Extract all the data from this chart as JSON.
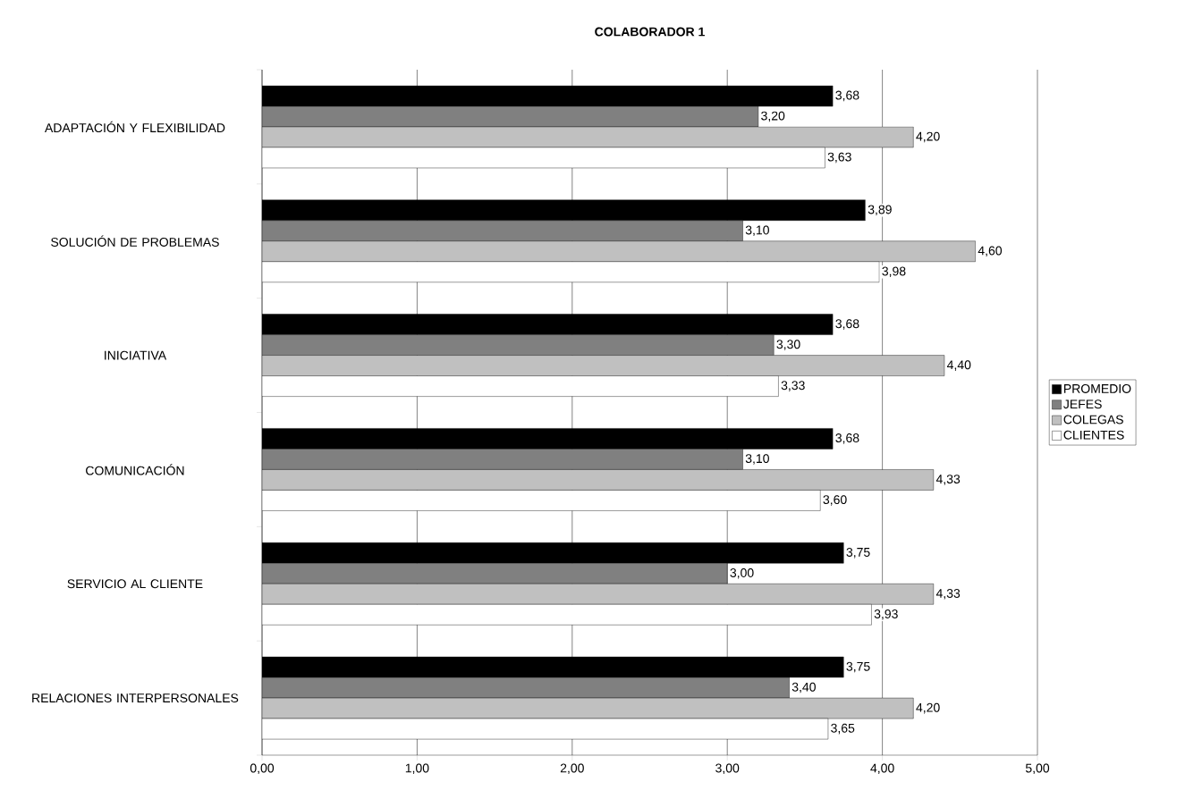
{
  "chart_data": {
    "type": "bar",
    "orientation": "horizontal",
    "title": "COLABORADOR 1",
    "categories": [
      "ADAPTACIÓN Y FLEXIBILIDAD",
      "SOLUCIÓN DE PROBLEMAS",
      "INICIATIVA",
      "COMUNICACIÓN",
      "SERVICIO AL CLIENTE",
      "RELACIONES INTERPERSONALES"
    ],
    "series": [
      {
        "name": "PROMEDIO",
        "color": "#000000",
        "values": [
          3.68,
          3.89,
          3.68,
          3.68,
          3.75,
          3.75
        ],
        "value_labels": [
          "3,68",
          "3,89",
          "3,68",
          "3,68",
          "3,75",
          "3,75"
        ]
      },
      {
        "name": "JEFES",
        "color": "#808080",
        "values": [
          3.2,
          3.1,
          3.3,
          3.1,
          3.0,
          3.4
        ],
        "value_labels": [
          "3,20",
          "3,10",
          "3,30",
          "3,10",
          "3,00",
          "3,40"
        ]
      },
      {
        "name": "COLEGAS",
        "color": "#c0c0c0",
        "values": [
          4.2,
          4.6,
          4.4,
          4.33,
          4.33,
          4.2
        ],
        "value_labels": [
          "4,20",
          "4,60",
          "4,40",
          "4,33",
          "4,33",
          "4,20"
        ]
      },
      {
        "name": "CLIENTES",
        "color": "#ffffff",
        "values": [
          3.63,
          3.98,
          3.33,
          3.6,
          3.93,
          3.65
        ],
        "value_labels": [
          "3,63",
          "3,98",
          "3,33",
          "3,60",
          "3,93",
          "3,65"
        ]
      }
    ],
    "xlim": [
      0,
      5
    ],
    "xticks": [
      {
        "value": 0,
        "label": "0,00"
      },
      {
        "value": 1,
        "label": "1,00"
      },
      {
        "value": 2,
        "label": "2,00"
      },
      {
        "value": 3,
        "label": "3,00"
      },
      {
        "value": 4,
        "label": "4,00"
      },
      {
        "value": 5,
        "label": "5,00"
      }
    ],
    "grid": "x",
    "legend": "right"
  }
}
